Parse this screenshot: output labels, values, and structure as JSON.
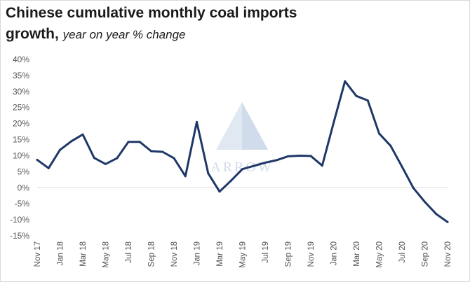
{
  "title": "Chinese cumulative monthly coal imports",
  "title_line2": "growth,",
  "subtitle": "year on year % change",
  "watermark": "ARROW",
  "colors": {
    "line": "#1f3868",
    "zero_line": "#d9d9d9",
    "watermark": "#c9d6e6"
  },
  "chart_data": {
    "type": "line",
    "title": "Chinese cumulative monthly coal imports growth,",
    "subtitle": "year on year % change",
    "xlabel": "",
    "ylabel": "",
    "ylim": [
      -15,
      40
    ],
    "yticks": [
      40,
      35,
      30,
      25,
      20,
      15,
      10,
      5,
      0,
      -5,
      -10,
      -15
    ],
    "ytick_labels": [
      "40%",
      "35%",
      "30%",
      "25%",
      "20%",
      "15%",
      "10%",
      "5%",
      "0%",
      "-5%",
      "-10%",
      "-15%"
    ],
    "x": [
      "Nov 17",
      "Dec 17",
      "Jan 18",
      "Feb 18",
      "Mar 18",
      "Apr 18",
      "May 18",
      "Jun 18",
      "Jul 18",
      "Aug 18",
      "Sep 18",
      "Oct 18",
      "Nov 18",
      "Dec 18",
      "Jan 19",
      "Feb 19",
      "Mar 19",
      "Apr 19",
      "May 19",
      "Jun 19",
      "Jul 19",
      "Aug 19",
      "Sep 19",
      "Oct 19",
      "Nov 19",
      "Dec 19",
      "Jan 20",
      "Feb 20",
      "Mar 20",
      "Apr 20",
      "May 20",
      "Jun 20",
      "Jul 20",
      "Aug 20",
      "Sep 20",
      "Oct 20",
      "Nov 20"
    ],
    "xtick_labels": [
      "Nov 17",
      "Jan 18",
      "Mar 18",
      "May 18",
      "Jul 18",
      "Sep 18",
      "Nov 18",
      "Jan 19",
      "Mar 19",
      "May 19",
      "Jul 19",
      "Sep 19",
      "Nov 19",
      "Jan 20",
      "Mar 20",
      "May 20",
      "Jul 20",
      "Sep 20",
      "Nov 20"
    ],
    "series": [
      {
        "values": [
          8.7,
          6.1,
          11.8,
          14.5,
          16.6,
          9.3,
          7.4,
          9.2,
          14.3,
          14.3,
          11.4,
          11.2,
          9.2,
          3.6,
          20.5,
          4.5,
          -1.2,
          2.2,
          5.8,
          6.8,
          7.8,
          8.6,
          9.8,
          10.0,
          9.9,
          6.9,
          20.2,
          33.2,
          28.6,
          27.2,
          16.9,
          13.1,
          6.6,
          -0.1,
          -4.4,
          -8.2,
          -10.7
        ]
      }
    ],
    "grid": false,
    "zero_line": true,
    "legend": "none"
  }
}
